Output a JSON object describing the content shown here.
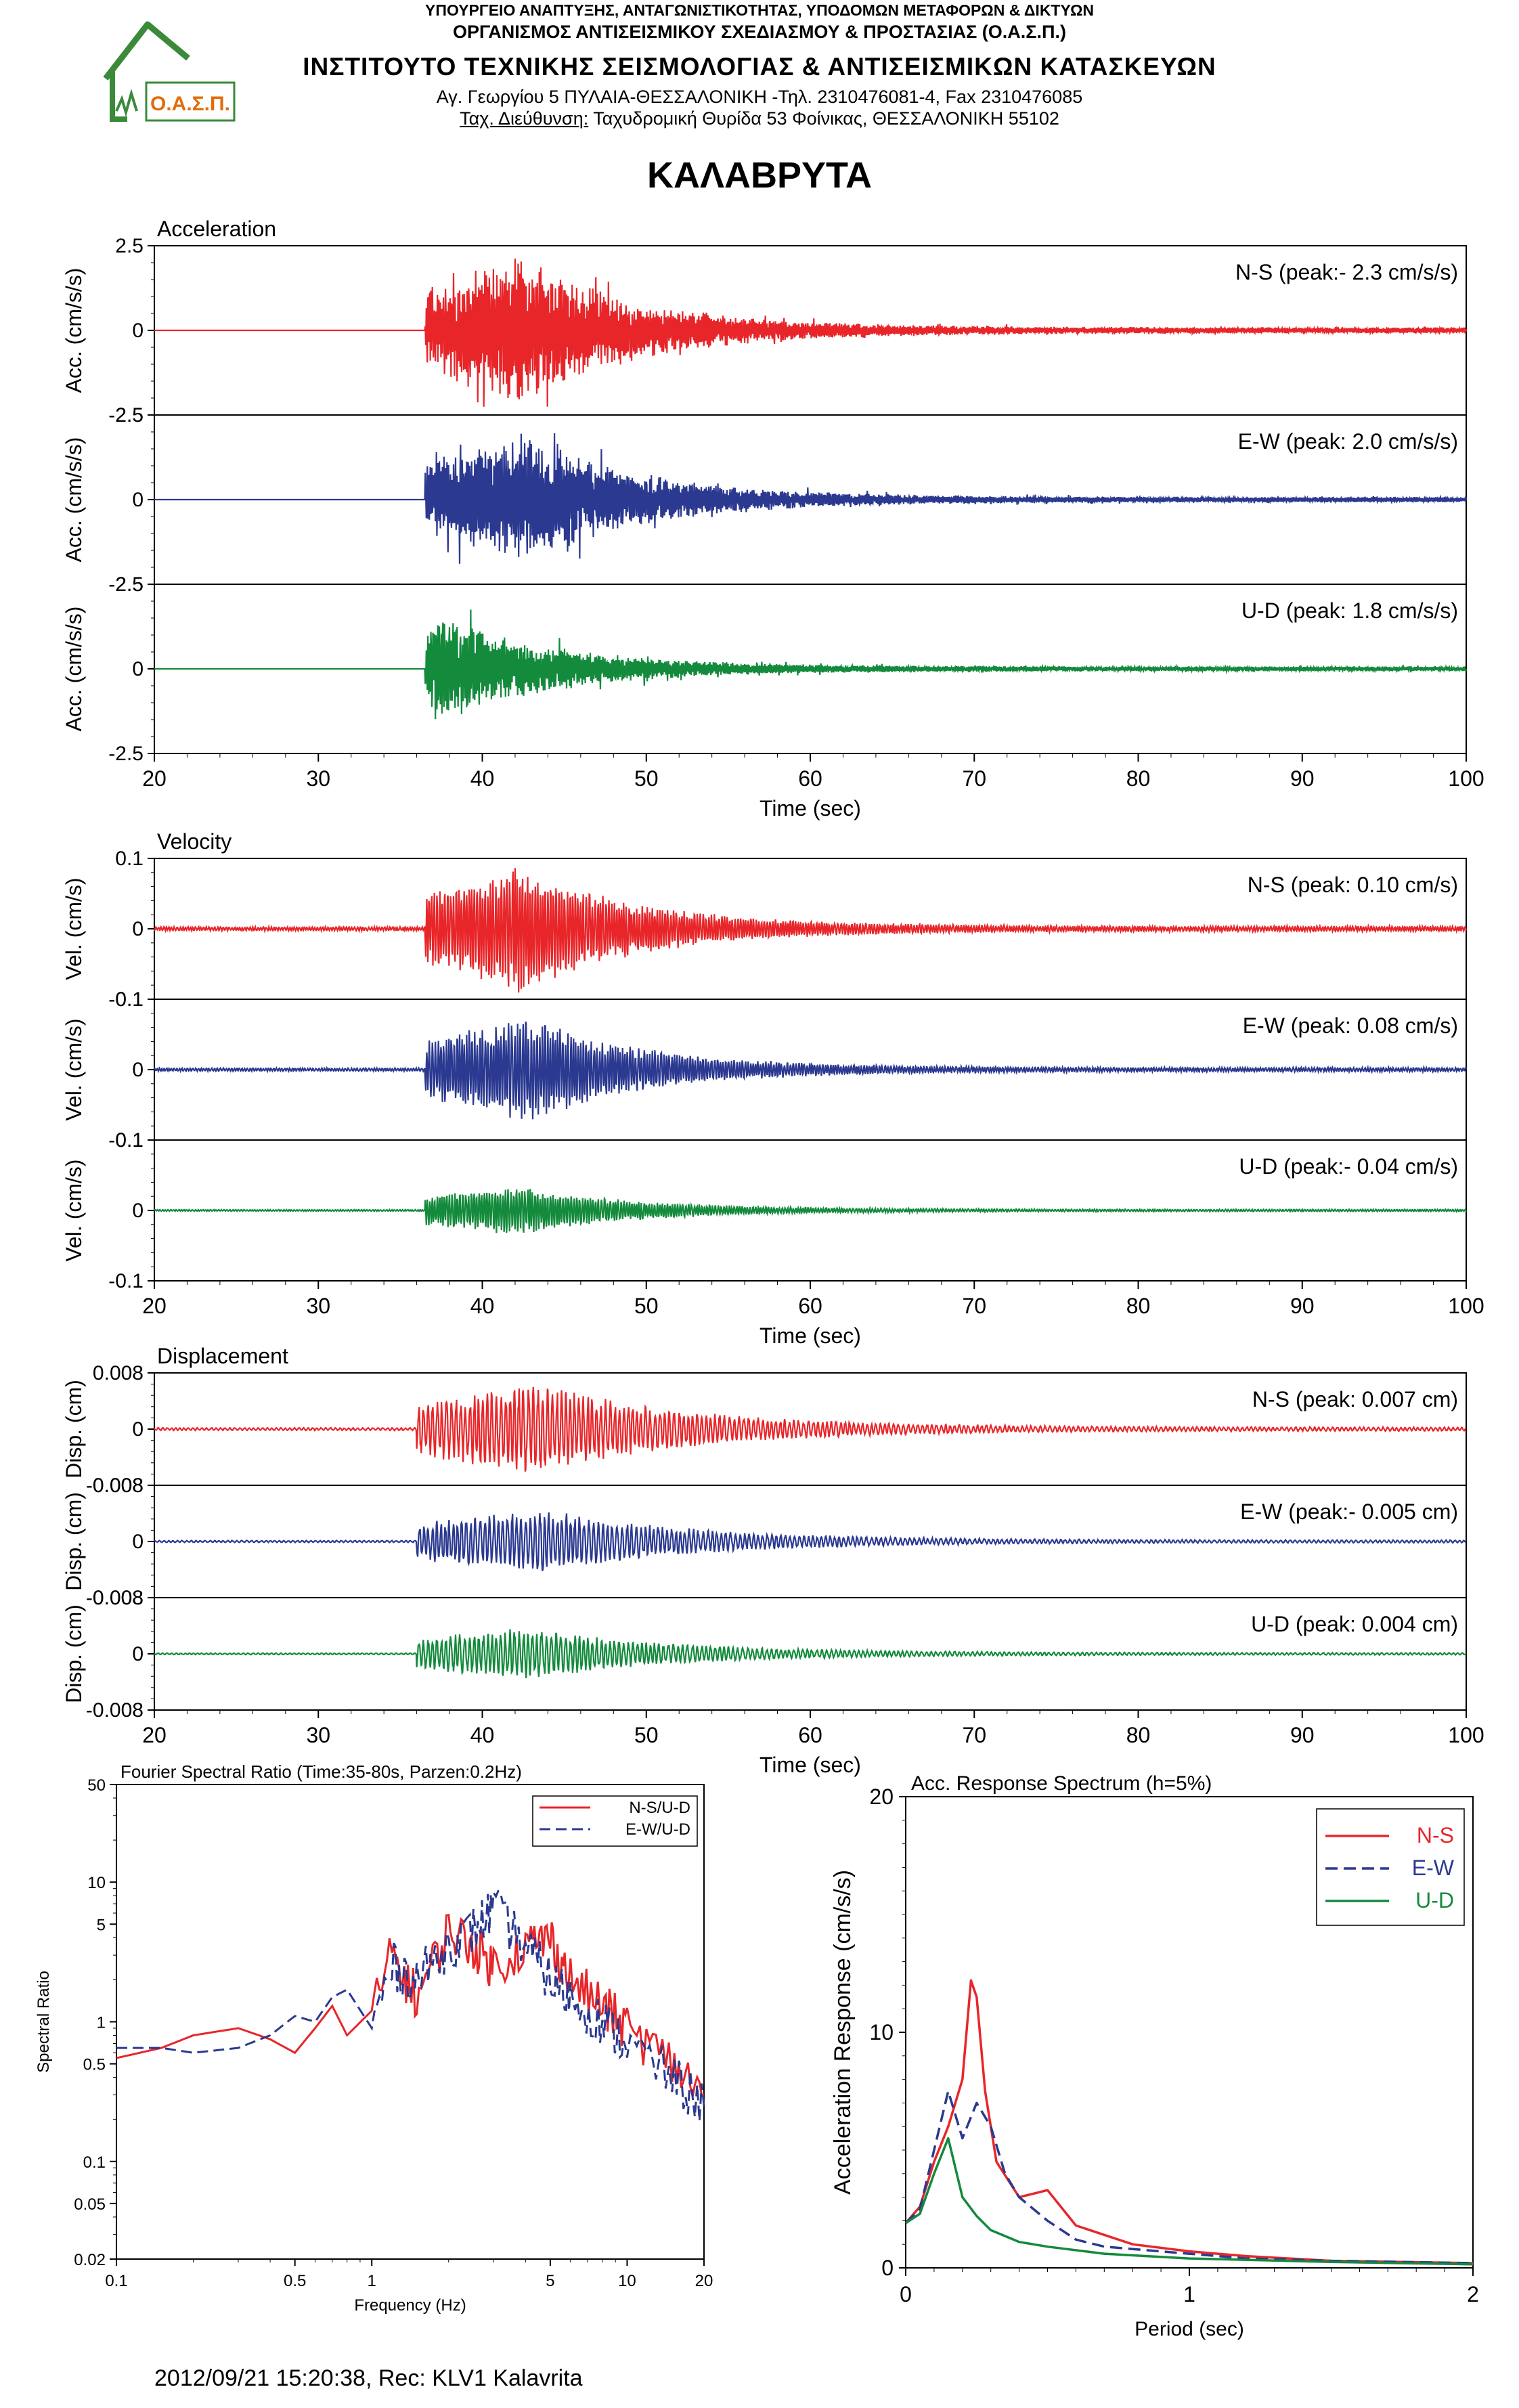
{
  "header": {
    "line1": "ΥΠΟΥΡΓΕΙΟ ΑΝΑΠΤΥΞΗΣ, ΑΝΤΑΓΩΝΙΣΤΙΚΟΤΗΤΑΣ, ΥΠΟΔΟΜΩΝ ΜΕΤΑΦΟΡΩΝ & ΔΙΚΤΥΩΝ",
    "line2": "ΟΡΓΑΝΙΣΜΟΣ ΑΝΤΙΣΕΙΣΜΙΚΟΥ ΣΧΕΔΙΑΣΜΟΥ & ΠΡΟΣΤΑΣΙΑΣ (Ο.Α.Σ.Π.)",
    "line3": "ΙΝΣΤΙΤΟΥΤΟ ΤΕΧΝΙΚΗΣ ΣΕΙΣΜΟΛΟΓΙΑΣ & ΑΝΤΙΣΕΙΣΜΙΚΩΝ ΚΑΤΑΣΚΕΥΩΝ",
    "line4": "Αγ. Γεωργίου 5 ΠΥΛΑΙΑ-ΘΕΣΣΑΛΟΝΙΚΗ -Τηλ. 2310476081-4, Fax 2310476085",
    "line5_label": "Ταχ. Διεύθυνση:",
    "line5_value": " Ταχυδρομική Θυρίδα 53 Φοίνικας, ΘΕΣΣΑΛΟΝΙΚΗ 55102",
    "logo_text": "Ο.Α.Σ.Π."
  },
  "station": "ΚΑΛΑΒΡΥΤΑ",
  "footer": "2012/09/21 15:20:38, Rec: KLV1 Kalavrita",
  "colors": {
    "ns": "#e8262a",
    "ew": "#2b3990",
    "ud": "#138a3c",
    "logo": "#3a8a3a",
    "logo_text": "#e36c0a"
  },
  "chart_data": [
    {
      "type": "line",
      "title": "Acceleration",
      "xlabel": "Time (sec)",
      "ylabel": "Acc. (cm/s/s)",
      "xlim": [
        20,
        100
      ],
      "xticks": [
        20,
        30,
        40,
        50,
        60,
        70,
        80,
        90,
        100
      ],
      "ylim": [
        -2.5,
        2.5
      ],
      "yticks": [
        "2.5",
        "0",
        "-2.5"
      ],
      "series": [
        {
          "name": "N-S (peak:- 2.3 cm/s/s)",
          "component": "ns",
          "peak": -2.3,
          "onset": 36.5,
          "amp_peak": 2.3,
          "envelope_peak_time": 42.5
        },
        {
          "name": "E-W (peak: 2.0 cm/s/s)",
          "component": "ew",
          "peak": 2.0,
          "onset": 36.5,
          "amp_peak": 2.0,
          "envelope_peak_time": 43.0
        },
        {
          "name": "U-D (peak: 1.8 cm/s/s)",
          "component": "ud",
          "peak": 1.8,
          "onset": 36.5,
          "amp_peak": 1.8,
          "envelope_peak_time": 37.0
        }
      ]
    },
    {
      "type": "line",
      "title": "Velocity",
      "xlabel": "Time (sec)",
      "ylabel": "Vel. (cm/s)",
      "xlim": [
        20,
        100
      ],
      "xticks": [
        20,
        30,
        40,
        50,
        60,
        70,
        80,
        90,
        100
      ],
      "ylim": [
        -0.1,
        0.1
      ],
      "yticks": [
        "0.1",
        "0",
        "-0.1"
      ],
      "series": [
        {
          "name": "N-S (peak: 0.10 cm/s)",
          "component": "ns",
          "peak": 0.1,
          "onset": 36.5,
          "amp_peak": 0.1,
          "envelope_peak_time": 42.5
        },
        {
          "name": "E-W (peak: 0.08 cm/s)",
          "component": "ew",
          "peak": 0.08,
          "onset": 36.5,
          "amp_peak": 0.08,
          "envelope_peak_time": 43.0
        },
        {
          "name": "U-D (peak:- 0.04 cm/s)",
          "component": "ud",
          "peak": -0.04,
          "onset": 36.5,
          "amp_peak": 0.04,
          "envelope_peak_time": 42.0
        }
      ]
    },
    {
      "type": "line",
      "title": "Displacement",
      "xlabel": "Time (sec)",
      "ylabel": "Disp. (cm)",
      "xlim": [
        20,
        100
      ],
      "xticks": [
        20,
        30,
        40,
        50,
        60,
        70,
        80,
        90,
        100
      ],
      "ylim": [
        -0.008,
        0.008
      ],
      "yticks": [
        "0.008",
        "0",
        "-0.008"
      ],
      "series": [
        {
          "name": "N-S (peak: 0.007 cm)",
          "component": "ns",
          "peak": 0.007,
          "onset": 36.0,
          "amp_peak": 0.007,
          "envelope_peak_time": 43.5
        },
        {
          "name": "E-W (peak:- 0.005 cm)",
          "component": "ew",
          "peak": -0.005,
          "onset": 36.0,
          "amp_peak": 0.005,
          "envelope_peak_time": 43.5
        },
        {
          "name": "U-D (peak: 0.004 cm)",
          "component": "ud",
          "peak": 0.004,
          "onset": 36.0,
          "amp_peak": 0.004,
          "envelope_peak_time": 42.5
        }
      ]
    },
    {
      "type": "line",
      "title": "Fourier Spectral Ratio (Time:35-80s, Parzen:0.2Hz)",
      "xlabel": "Frequency (Hz)",
      "ylabel": "Spectral Ratio",
      "xscale": "log",
      "yscale": "log",
      "xlim": [
        0.1,
        20
      ],
      "ylim": [
        0.02,
        50
      ],
      "xticks": [
        0.1,
        0.5,
        1,
        5,
        10,
        20
      ],
      "yticks": [
        50,
        10,
        5,
        1,
        0.5,
        0.1,
        0.05,
        0.02
      ],
      "legend": "top-right",
      "series": [
        {
          "name": "N-S/U-D",
          "component": "ns",
          "dash": "solid",
          "x": [
            0.1,
            0.15,
            0.2,
            0.3,
            0.4,
            0.5,
            0.6,
            0.7,
            0.8,
            1.0,
            1.2,
            1.5,
            2.0,
            2.5,
            3.0,
            4.0,
            5.0,
            6.0,
            8.0,
            10.0,
            15.0,
            20.0
          ],
          "y": [
            0.55,
            0.65,
            0.8,
            0.9,
            0.75,
            0.6,
            0.9,
            1.3,
            0.8,
            1.2,
            3.0,
            1.5,
            4.5,
            3.5,
            2.5,
            3.5,
            4.0,
            2.0,
            1.3,
            0.9,
            0.5,
            0.3
          ]
        },
        {
          "name": "E-W/U-D",
          "component": "ew",
          "dash": "dashed",
          "x": [
            0.1,
            0.15,
            0.2,
            0.3,
            0.4,
            0.5,
            0.6,
            0.7,
            0.8,
            1.0,
            1.2,
            1.5,
            2.0,
            2.5,
            3.0,
            4.0,
            5.0,
            6.0,
            8.0,
            10.0,
            15.0,
            20.0
          ],
          "y": [
            0.65,
            0.65,
            0.6,
            0.65,
            0.8,
            1.1,
            1.0,
            1.5,
            1.7,
            0.9,
            2.5,
            2.0,
            3.5,
            4.5,
            6.5,
            3.5,
            2.0,
            1.5,
            1.0,
            0.7,
            0.4,
            0.25
          ]
        }
      ]
    },
    {
      "type": "line",
      "title": "Acc. Response Spectrum (h=5%)",
      "xlabel": "Period (sec)",
      "ylabel": "Acceleration Response (cm/s/s)",
      "xlim": [
        0,
        2
      ],
      "ylim": [
        0,
        20
      ],
      "xticks": [
        0,
        1,
        2
      ],
      "yticks": [
        0,
        10,
        20
      ],
      "legend": "top-right",
      "series": [
        {
          "name": "N-S",
          "component": "ns",
          "dash": "solid",
          "x": [
            0,
            0.05,
            0.1,
            0.15,
            0.2,
            0.23,
            0.25,
            0.28,
            0.32,
            0.4,
            0.5,
            0.6,
            0.7,
            0.8,
            1.0,
            1.2,
            1.5,
            2.0
          ],
          "y": [
            1.9,
            2.6,
            4.5,
            6.0,
            8.0,
            12.2,
            11.5,
            7.5,
            4.5,
            3.0,
            3.3,
            1.8,
            1.4,
            1.0,
            0.7,
            0.5,
            0.3,
            0.2
          ]
        },
        {
          "name": "E-W",
          "component": "ew",
          "dash": "dashed",
          "x": [
            0,
            0.05,
            0.1,
            0.15,
            0.2,
            0.25,
            0.3,
            0.35,
            0.4,
            0.5,
            0.6,
            0.7,
            0.8,
            1.0,
            1.2,
            1.5,
            2.0
          ],
          "y": [
            1.9,
            2.5,
            5.0,
            7.5,
            5.5,
            7.0,
            6.0,
            4.0,
            3.0,
            2.0,
            1.2,
            0.9,
            0.8,
            0.6,
            0.4,
            0.3,
            0.2
          ]
        },
        {
          "name": "U-D",
          "component": "ud",
          "dash": "solid",
          "x": [
            0,
            0.05,
            0.1,
            0.15,
            0.2,
            0.25,
            0.3,
            0.4,
            0.5,
            0.7,
            1.0,
            1.5,
            2.0
          ],
          "y": [
            1.9,
            2.3,
            4.0,
            5.5,
            3.0,
            2.2,
            1.6,
            1.1,
            0.9,
            0.6,
            0.4,
            0.25,
            0.15
          ]
        }
      ]
    }
  ]
}
